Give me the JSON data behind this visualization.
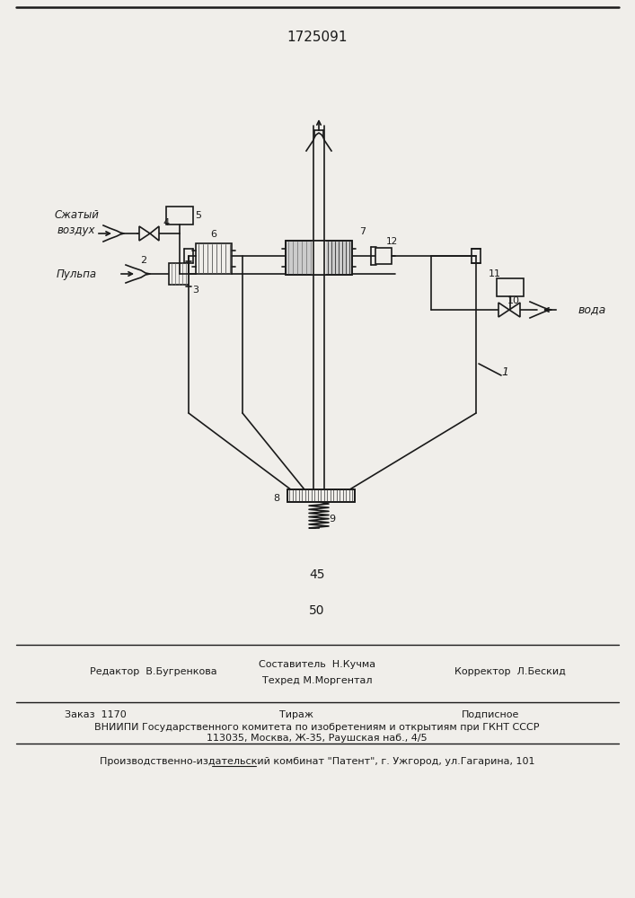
{
  "patent_number": "1725091",
  "page_45": "45",
  "page_50": "50",
  "label_air": "Сжатый\nвоздух",
  "label_pulp": "Пульпа",
  "label_water": "вода",
  "editor": "Редактор  В.Бугренкова",
  "composer1": "Составитель  Н.Кучма",
  "composer2": "Техред М.Моргентал",
  "corrector": "Корректор  Л.Бескид",
  "order": "Заказ  1170",
  "tirazh": "Тираж",
  "podpisnoe": "Подписное",
  "vniiipi1": "ВНИИПИ Государственного комитета по изобретениям и открытиям при ГКНТ СССР",
  "vniiipi2": "113035, Москва, Ж-35, Раушская наб., 4/5",
  "factory": "Производственно-издательский комбинат \"Патент\", г. Ужгород, ул.Гагарина, 101",
  "bg": "#f0eeea",
  "lc": "#1a1a1a"
}
